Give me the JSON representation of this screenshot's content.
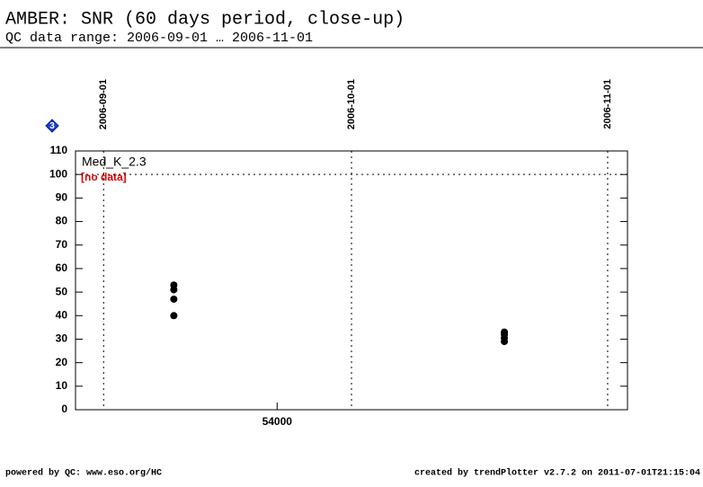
{
  "chart_data": {
    "type": "scatter",
    "title": "AMBER: SNR (60 days period, close-up)",
    "subtitle": "QC data range: 2006-09-01 … 2006-11-01",
    "xlim": [
      53975.6,
      54042.4
    ],
    "ylim": [
      0,
      110
    ],
    "xticks": [
      54000
    ],
    "yticks": [
      0,
      10,
      20,
      30,
      40,
      50,
      60,
      70,
      80,
      90,
      100,
      110
    ],
    "date_markers": [
      {
        "value": 53979,
        "label": "2006-09-01"
      },
      {
        "value": 54009,
        "label": "2006-10-01"
      },
      {
        "value": 54040,
        "label": "2006-11-01"
      }
    ],
    "reference_line": 100,
    "badge": "3",
    "series": [
      {
        "name": "Med_K_2.3",
        "color": "#000000",
        "x": [
          53987.5,
          53987.5,
          53987.5,
          53987.5,
          54027.5,
          54027.5,
          54027.5,
          54027.5
        ],
        "values": [
          53,
          51,
          47,
          40,
          33,
          32,
          30.5,
          29
        ]
      }
    ],
    "note": "[no data]",
    "footer_left": "powered by QC: www.eso.org/HC",
    "footer_right": "created by trendPlotter v2.7.2 on 2011-07-01T21:15:04"
  }
}
